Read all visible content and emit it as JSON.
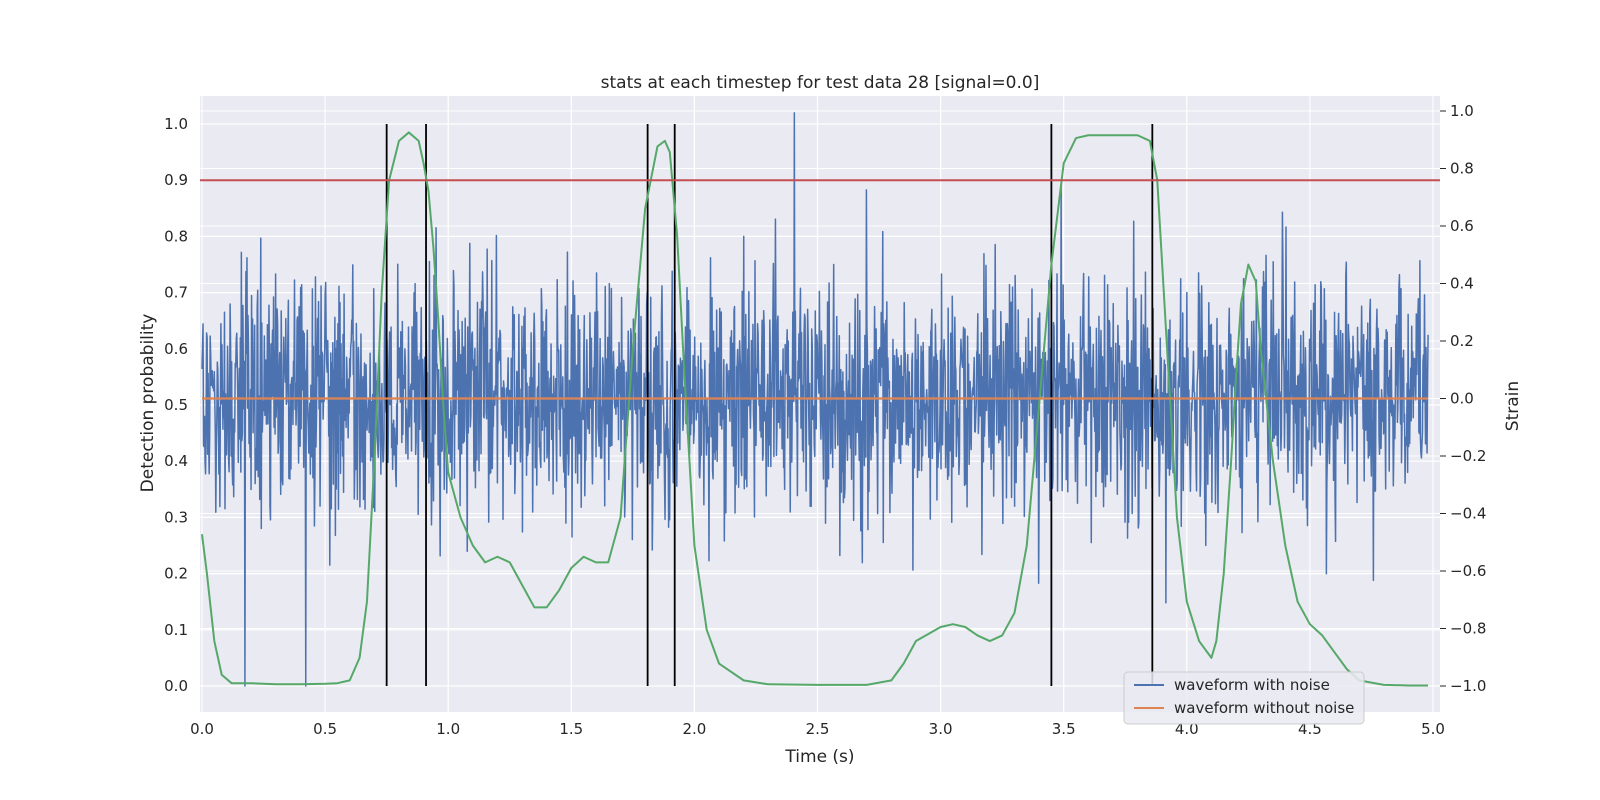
{
  "chart_data": {
    "type": "line",
    "title": "stats at each timestep for test data 28 [signal=0.0]",
    "xlabel": "Time (s)",
    "ylabel": "Detection probability",
    "y2label": "Strain",
    "xlim": [
      0.0,
      5.0
    ],
    "ylim": [
      0.0,
      1.0
    ],
    "y2lim": [
      -1.0,
      1.0
    ],
    "x_ticks": [
      "0.0",
      "0.5",
      "1.0",
      "1.5",
      "2.0",
      "2.5",
      "3.0",
      "3.5",
      "4.0",
      "4.5",
      "5.0"
    ],
    "y_ticks": [
      "0.0",
      "0.1",
      "0.2",
      "0.3",
      "0.4",
      "0.5",
      "0.6",
      "0.7",
      "0.8",
      "0.9",
      "1.0"
    ],
    "y2_ticks": [
      "−1.0",
      "−0.8",
      "−0.6",
      "−0.4",
      "−0.2",
      "0.0",
      "0.2",
      "0.4",
      "0.6",
      "0.8",
      "1.0"
    ],
    "grid": true,
    "legend_position": "lower-right",
    "legend": [
      "waveform with noise",
      "waveform without noise"
    ],
    "threshold": {
      "y": 0.9,
      "color": "#c44e52"
    },
    "event_markers_x": [
      0.75,
      0.91,
      1.81,
      1.92,
      3.45,
      3.86
    ],
    "colors": {
      "noisy": "#4c72b0",
      "clean": "#dd8452",
      "probability": "#55a868",
      "threshold": "#c44e52",
      "markers": "#000000",
      "background": "#eaeaf2",
      "grid": "#ffffff"
    },
    "series": [
      {
        "name": "waveform with noise",
        "axis": "right",
        "description_values": "random noise, strain mostly between -0.4 and 0.4 with spikes reaching about -1.0 and 1.0",
        "range": [
          -1.0,
          1.0
        ]
      },
      {
        "name": "waveform without noise",
        "axis": "right",
        "constant": 0.0
      },
      {
        "name": "detection probability",
        "axis": "left",
        "x": [
          0.0,
          0.02,
          0.05,
          0.08,
          0.12,
          0.2,
          0.3,
          0.4,
          0.5,
          0.55,
          0.6,
          0.64,
          0.67,
          0.7,
          0.73,
          0.76,
          0.8,
          0.84,
          0.88,
          0.9,
          0.92,
          0.94,
          0.96,
          0.98,
          1.0,
          1.05,
          1.1,
          1.15,
          1.2,
          1.25,
          1.3,
          1.35,
          1.4,
          1.45,
          1.5,
          1.55,
          1.6,
          1.65,
          1.7,
          1.75,
          1.8,
          1.85,
          1.88,
          1.9,
          1.93,
          1.96,
          2.0,
          2.05,
          2.1,
          2.2,
          2.3,
          2.5,
          2.7,
          2.8,
          2.85,
          2.9,
          3.0,
          3.05,
          3.1,
          3.15,
          3.2,
          3.25,
          3.3,
          3.35,
          3.4,
          3.45,
          3.5,
          3.55,
          3.6,
          3.7,
          3.8,
          3.85,
          3.88,
          3.92,
          3.96,
          4.0,
          4.05,
          4.1,
          4.12,
          4.15,
          4.18,
          4.2,
          4.22,
          4.25,
          4.28,
          4.3,
          4.35,
          4.4,
          4.45,
          4.5,
          4.55,
          4.6,
          4.65,
          4.7,
          4.8,
          4.9,
          4.98
        ],
        "values": [
          0.27,
          0.2,
          0.08,
          0.02,
          0.005,
          0.005,
          0.003,
          0.003,
          0.004,
          0.005,
          0.01,
          0.05,
          0.15,
          0.4,
          0.7,
          0.9,
          0.97,
          0.985,
          0.97,
          0.93,
          0.88,
          0.78,
          0.65,
          0.5,
          0.38,
          0.3,
          0.25,
          0.22,
          0.23,
          0.22,
          0.18,
          0.14,
          0.14,
          0.17,
          0.21,
          0.23,
          0.22,
          0.22,
          0.3,
          0.6,
          0.85,
          0.96,
          0.97,
          0.95,
          0.8,
          0.55,
          0.25,
          0.1,
          0.04,
          0.01,
          0.003,
          0.002,
          0.002,
          0.01,
          0.04,
          0.08,
          0.105,
          0.11,
          0.105,
          0.09,
          0.08,
          0.09,
          0.13,
          0.25,
          0.5,
          0.75,
          0.93,
          0.975,
          0.98,
          0.98,
          0.98,
          0.97,
          0.9,
          0.6,
          0.3,
          0.15,
          0.08,
          0.05,
          0.08,
          0.2,
          0.4,
          0.55,
          0.68,
          0.75,
          0.72,
          0.6,
          0.4,
          0.25,
          0.15,
          0.11,
          0.09,
          0.06,
          0.03,
          0.01,
          0.002,
          0.001,
          0.001
        ]
      }
    ]
  }
}
